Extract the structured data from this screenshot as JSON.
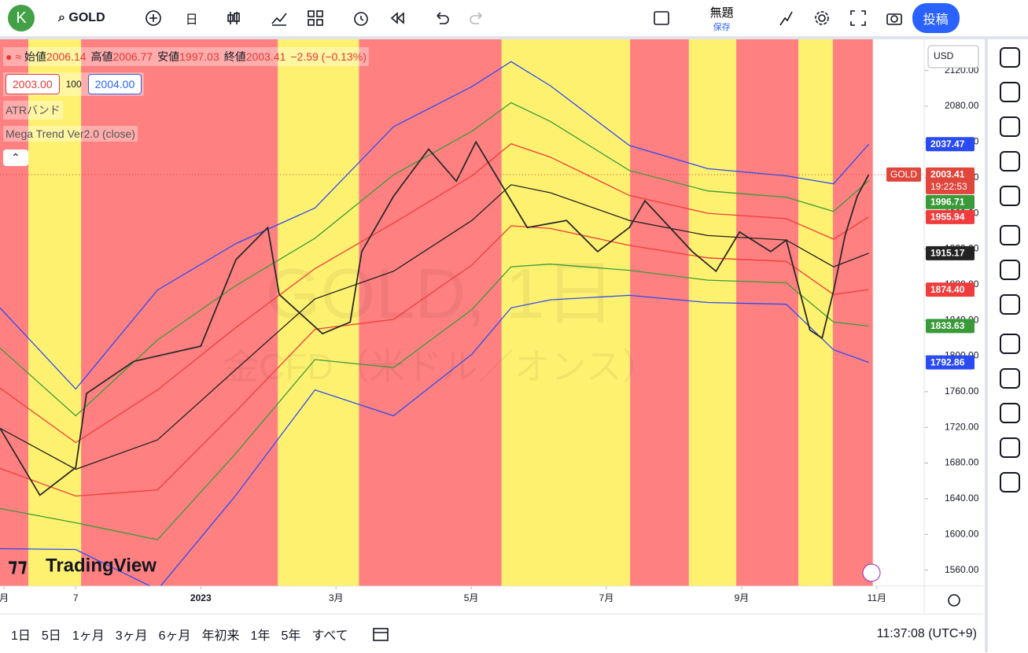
{
  "toolbar": {
    "avatar": "K",
    "symbol": "GOLD",
    "interval": "日",
    "layout_name": "無題",
    "save": "保存",
    "publish": "投稿"
  },
  "legend": {
    "items": [
      {
        "label": "始値",
        "value": "2006.14"
      },
      {
        "label": "高値",
        "value": "2006.77"
      },
      {
        "label": "安値",
        "value": "1997.03"
      },
      {
        "label": "終値",
        "value": "2003.41"
      }
    ],
    "change": "−2.59 (−0.13%)",
    "bid": "2003.00",
    "spread": "100",
    "ask": "2004.00",
    "indicators": [
      "ATRバンド",
      "Mega Trend Ver2.0 (close)"
    ]
  },
  "chart_data": {
    "type": "line",
    "watermark": [
      "GOLD, 1日",
      "金CFD（米ドル／オンス）"
    ],
    "logo": "TradingView",
    "currency": "USD",
    "xlim": [
      -2.97,
      10.7
    ],
    "ylim": [
      1542,
      2155
    ],
    "xticks": [
      {
        "value": -2.91,
        "label": "月"
      },
      {
        "value": -1.85,
        "label": "7"
      },
      {
        "value": 0,
        "label": "2023"
      },
      {
        "value": 2,
        "label": "3月"
      },
      {
        "value": 4,
        "label": "5月"
      },
      {
        "value": 6,
        "label": "7月"
      },
      {
        "value": 8,
        "label": "9月"
      },
      {
        "value": 10,
        "label": "11月"
      }
    ],
    "yticks": [
      {
        "value": 1560,
        "label": "1560.00"
      },
      {
        "value": 1600,
        "label": "1600.00"
      },
      {
        "value": 1640,
        "label": "1640.00"
      },
      {
        "value": 1680,
        "label": "1680.00"
      },
      {
        "value": 1720,
        "label": "1720.00"
      },
      {
        "value": 1760,
        "label": "1760.00"
      },
      {
        "value": 1800,
        "label": "1800.00"
      },
      {
        "value": 1840,
        "label": "1840.00"
      },
      {
        "value": 1880,
        "label": "1880.00"
      },
      {
        "value": 1920,
        "label": "1920.00"
      },
      {
        "value": 1960,
        "label": "1960.00"
      },
      {
        "value": 2000,
        "label": "2000.00"
      },
      {
        "value": 2040,
        "label": "2040.00"
      },
      {
        "value": 2080,
        "label": "2080.00"
      },
      {
        "value": 2120,
        "label": "2120.00"
      }
    ],
    "background": [
      {
        "from": -2.97,
        "to": -2.55,
        "color": "#ff8080"
      },
      {
        "from": -2.55,
        "to": -1.77,
        "color": "#fff170"
      },
      {
        "from": -1.77,
        "to": 1.14,
        "color": "#ff8080"
      },
      {
        "from": 1.14,
        "to": 2.34,
        "color": "#fff170"
      },
      {
        "from": 2.34,
        "to": 4.45,
        "color": "#ff8080"
      },
      {
        "from": 4.45,
        "to": 6.35,
        "color": "#fff170"
      },
      {
        "from": 6.35,
        "to": 7.22,
        "color": "#ff8080"
      },
      {
        "from": 7.22,
        "to": 7.92,
        "color": "#fff170"
      },
      {
        "from": 7.92,
        "to": 8.84,
        "color": "#ff8080"
      },
      {
        "from": 8.84,
        "to": 9.35,
        "color": "#fff170"
      },
      {
        "from": 9.35,
        "to": 9.94,
        "color": "#ff8080"
      }
    ],
    "series": [
      {
        "color": "#2b4bf2",
        "x": [
          -2.97,
          -1.85,
          -0.64,
          0.52,
          1.69,
          2.85,
          4.01,
          4.59,
          5.17,
          6.34,
          7.5,
          8.66,
          9.36,
          9.88
        ],
        "values": [
          1854,
          1763,
          1874,
          1926,
          1966,
          2057,
          2102,
          2130,
          2103,
          2036,
          2010,
          2002,
          1993,
          2037.47
        ]
      },
      {
        "color": "#3a9a3a",
        "x": [
          -2.97,
          -1.85,
          -0.64,
          0.52,
          1.69,
          2.85,
          4.01,
          4.59,
          5.17,
          6.34,
          7.5,
          8.66,
          9.36,
          9.88
        ],
        "values": [
          1809,
          1733,
          1818,
          1879,
          1932,
          2003,
          2052,
          2084,
          2063,
          2008,
          1985,
          1978,
          1962,
          1996.71
        ]
      },
      {
        "color": "#f03c3c",
        "x": [
          -2.97,
          -1.85,
          -0.64,
          0.52,
          1.69,
          2.85,
          4.01,
          4.59,
          5.17,
          6.34,
          7.5,
          8.66,
          9.36,
          9.88
        ],
        "values": [
          1764,
          1703,
          1762,
          1832,
          1898,
          1949,
          2002,
          2038,
          2023,
          1980,
          1960,
          1954,
          1931,
          1955.94
        ]
      },
      {
        "color": "#222222",
        "x": [
          -2.97,
          -1.85,
          -0.64,
          0.52,
          1.69,
          2.85,
          4.01,
          4.59,
          5.17,
          6.34,
          7.5,
          8.66,
          9.36,
          9.88
        ],
        "values": [
          1719,
          1673,
          1706,
          1785,
          1864,
          1895,
          1952,
          1992,
          1983,
          1952,
          1935,
          1930,
          1900,
          1915.17
        ]
      },
      {
        "color": "#f03c3c",
        "x": [
          -2.97,
          -1.85,
          -0.64,
          0.52,
          1.69,
          2.85,
          4.01,
          4.59,
          5.17,
          6.34,
          7.5,
          8.66,
          9.36,
          9.88
        ],
        "values": [
          1674,
          1643,
          1650,
          1738,
          1830,
          1841,
          1902,
          1946,
          1943,
          1924,
          1910,
          1906,
          1869,
          1874.4
        ]
      },
      {
        "color": "#3a9a3a",
        "x": [
          -2.97,
          -1.85,
          -0.64,
          0.52,
          1.69,
          2.85,
          4.01,
          4.59,
          5.17,
          6.34,
          7.5,
          8.66,
          9.36,
          9.88
        ],
        "values": [
          1629,
          1613,
          1594,
          1691,
          1796,
          1787,
          1852,
          1900,
          1903,
          1896,
          1885,
          1882,
          1838,
          1833.63
        ]
      },
      {
        "color": "#2b4bf2",
        "x": [
          -2.97,
          -1.85,
          -0.64,
          0.52,
          1.69,
          2.85,
          4.01,
          4.59,
          5.17,
          6.34,
          7.5,
          8.66,
          9.36,
          9.88
        ],
        "values": [
          1584,
          1583,
          1538,
          1644,
          1762,
          1733,
          1802,
          1854,
          1863,
          1868,
          1860,
          1858,
          1807,
          1792.86
        ]
      },
      {
        "color": "#2a2a2a",
        "x": [
          -2.97,
          -2.38,
          -1.85,
          -1.69,
          -0.99,
          0,
          0.52,
          0.99,
          1.16,
          1.8,
          2.21,
          2.38,
          2.85,
          3.37,
          3.78,
          4.07,
          4.48,
          4.83,
          5.41,
          5.87,
          6.34,
          6.57,
          7.27,
          7.62,
          7.97,
          8.43,
          8.66,
          9.01,
          9.19,
          9.36,
          9.53,
          9.71,
          9.88
        ],
        "values": [
          1719,
          1644,
          1675,
          1758,
          1794,
          1811,
          1908,
          1944,
          1869,
          1825,
          1838,
          1917,
          1979,
          2032,
          1996,
          2040,
          1988,
          1944,
          1952,
          1917,
          1944,
          1974,
          1917,
          1895,
          1939,
          1917,
          1930,
          1829,
          1820,
          1873,
          1935,
          1979,
          2003.41
        ]
      }
    ],
    "price_labels": [
      {
        "value": 2037.47,
        "label": "2037.47",
        "color": "#2b4bf2"
      },
      {
        "value": 2003.41,
        "label": "2003.41",
        "color": "#e0463c",
        "name": "GOLD",
        "timer": "19:22:53"
      },
      {
        "value": 1996.71,
        "label": "1996.71",
        "color": "#3a9a3a"
      },
      {
        "value": 1955.94,
        "label": "1955.94",
        "color": "#f03c3c"
      },
      {
        "value": 1915.17,
        "label": "1915.17",
        "color": "#222222"
      },
      {
        "value": 1874.4,
        "label": "1874.40",
        "color": "#f03c3c"
      },
      {
        "value": 1833.63,
        "label": "1833.63",
        "color": "#3a9a3a"
      },
      {
        "value": 1792.86,
        "label": "1792.86",
        "color": "#2b4bf2"
      }
    ]
  },
  "bottom_bar": {
    "ranges": [
      "1日",
      "5日",
      "1ヶ月",
      "3ヶ月",
      "6ヶ月",
      "年初来",
      "1年",
      "5年",
      "すべて"
    ],
    "clock": "11:37:08 (UTC+9)"
  }
}
